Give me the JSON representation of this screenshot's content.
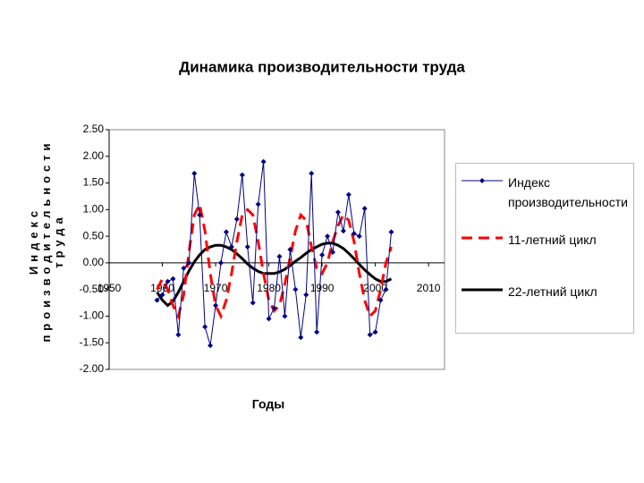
{
  "chart_data": {
    "type": "line",
    "title": "Динамика производительности труда",
    "x_label": "Годы",
    "y_label": "Индекс производительности труда",
    "x": [
      1959,
      1960,
      1961,
      1962,
      1963,
      1964,
      1965,
      1966,
      1967,
      1968,
      1969,
      1970,
      1971,
      1972,
      1973,
      1974,
      1975,
      1976,
      1977,
      1978,
      1979,
      1980,
      1981,
      1982,
      1983,
      1984,
      1985,
      1986,
      1987,
      1988,
      1989,
      1990,
      1991,
      1992,
      1993,
      1994,
      1995,
      1996,
      1997,
      1998,
      1999,
      2000,
      2001,
      2002,
      2003
    ],
    "series": [
      {
        "name": "Индекс производительности",
        "color": "#000080",
        "line_style": "solid",
        "line_width": 1,
        "marker": "diamond",
        "values": [
          -0.7,
          -0.6,
          -0.35,
          -0.3,
          -1.35,
          -0.1,
          0.0,
          1.68,
          0.9,
          -1.2,
          -1.55,
          -0.8,
          0.0,
          0.58,
          0.3,
          0.82,
          1.65,
          0.3,
          -0.75,
          1.1,
          1.9,
          -1.05,
          -0.85,
          0.12,
          -1.0,
          0.25,
          -0.5,
          -1.4,
          -0.6,
          1.68,
          -1.3,
          0.15,
          0.5,
          0.2,
          0.95,
          0.6,
          1.28,
          0.55,
          0.5,
          1.02,
          -1.35,
          -1.3,
          -0.7,
          -0.5,
          0.58
        ]
      },
      {
        "name": "11-летний цикл",
        "color": "#ff0000",
        "line_style": "dashed",
        "line_width": 3,
        "values": [
          -0.5,
          -0.3,
          -0.5,
          -0.8,
          -1.0,
          -0.6,
          0.2,
          0.9,
          1.1,
          0.6,
          -0.2,
          -0.8,
          -1.0,
          -0.7,
          -0.2,
          0.4,
          0.9,
          1.0,
          0.9,
          0.4,
          -0.2,
          -0.7,
          -0.9,
          -0.8,
          -0.4,
          0.1,
          0.6,
          0.9,
          0.8,
          0.3,
          -0.1,
          -0.2,
          0.0,
          0.4,
          0.7,
          0.9,
          0.8,
          0.4,
          -0.2,
          -0.7,
          -1.0,
          -0.9,
          -0.5,
          0.0,
          0.3
        ]
      },
      {
        "name": "22-летний цикл",
        "color": "#000000",
        "line_style": "solid",
        "line_width": 3,
        "values": [
          -0.55,
          -0.7,
          -0.8,
          -0.72,
          -0.55,
          -0.35,
          -0.15,
          0.02,
          0.15,
          0.25,
          0.3,
          0.33,
          0.33,
          0.3,
          0.25,
          0.17,
          0.08,
          -0.02,
          -0.1,
          -0.16,
          -0.2,
          -0.2,
          -0.2,
          -0.17,
          -0.12,
          -0.05,
          0.03,
          0.1,
          0.18,
          0.25,
          0.3,
          0.35,
          0.37,
          0.37,
          0.33,
          0.27,
          0.18,
          0.08,
          -0.03,
          -0.13,
          -0.22,
          -0.3,
          -0.35,
          -0.35,
          -0.3
        ]
      }
    ],
    "xlim": [
      1950,
      2013
    ],
    "xticks": [
      1950,
      1960,
      1970,
      1980,
      1990,
      2000,
      2010
    ],
    "ylim": [
      -2,
      2.5
    ],
    "yticks": [
      {
        "value": 2.5,
        "label": "2.50"
      },
      {
        "value": 2,
        "label": "2.00"
      },
      {
        "value": 1.5,
        "label": "1.50"
      },
      {
        "value": 1,
        "label": "1.00"
      },
      {
        "value": 0.5,
        "label": "0.50"
      },
      {
        "value": 0,
        "label": "0.00"
      },
      {
        "value": -0.5,
        "label": "-0.50"
      },
      {
        "value": -1,
        "label": "-1.00"
      },
      {
        "value": -1.5,
        "label": "-1.50"
      },
      {
        "value": -2,
        "label": "-2.00"
      }
    ],
    "grid": false,
    "legend": "right"
  }
}
